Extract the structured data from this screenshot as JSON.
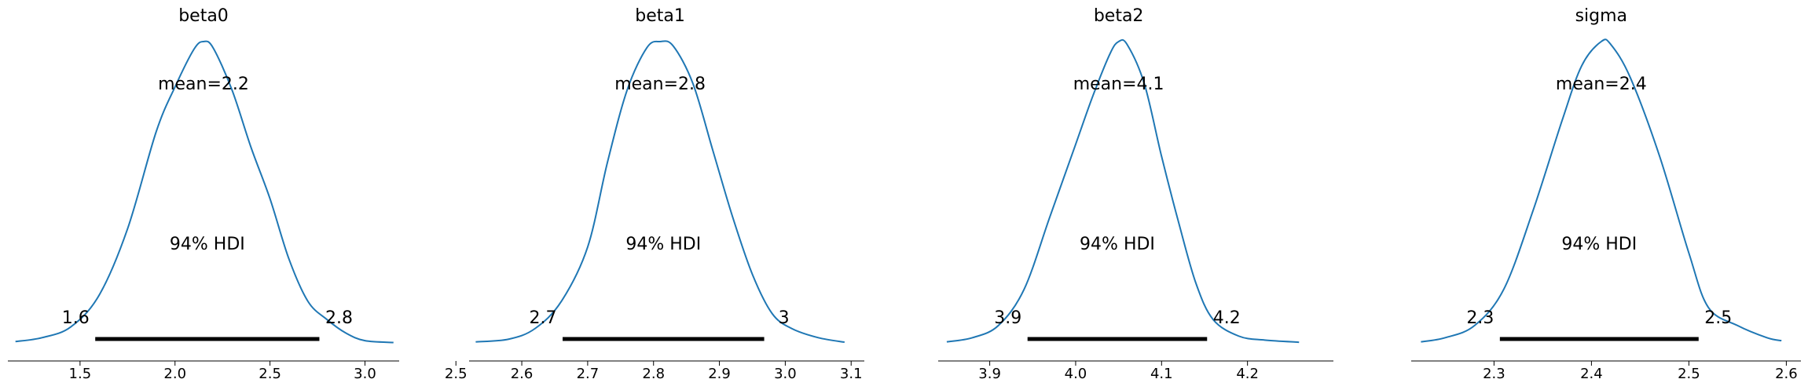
{
  "colors": {
    "kde": "#1f77b4",
    "hdi": "#000000",
    "axis": "#000000"
  },
  "chart_data": [
    {
      "type": "area",
      "title": "beta0",
      "xlim": [
        1.12,
        3.18
      ],
      "xticks": [
        1.5,
        2.0,
        2.5,
        3.0
      ],
      "xtick_labels": [
        "1.5",
        "2.0",
        "2.5",
        "3.0"
      ],
      "mean_label": "mean=2.2",
      "hdi_label": "94% HDI",
      "hdi": [
        1.58,
        2.76
      ],
      "hdi_labels": [
        "1.6",
        "2.8"
      ],
      "density": {
        "x": [
          1.16,
          1.3,
          1.45,
          1.6,
          1.75,
          1.9,
          2.0,
          2.1,
          2.15,
          2.2,
          2.3,
          2.4,
          2.5,
          2.6,
          2.7,
          2.8,
          2.9,
          3.0,
          3.15
        ],
        "y": [
          0.007,
          0.02,
          0.055,
          0.16,
          0.38,
          0.7,
          0.85,
          0.975,
          1.0,
          0.98,
          0.84,
          0.65,
          0.48,
          0.28,
          0.14,
          0.08,
          0.035,
          0.01,
          0.004
        ]
      }
    },
    {
      "type": "area",
      "title": "beta1",
      "xlim": [
        2.52,
        3.12
      ],
      "xticks": [
        2.5,
        2.6,
        2.7,
        2.8,
        2.9,
        3.0,
        3.1
      ],
      "xtick_labels": [
        "2.5",
        "2.6",
        "2.7",
        "2.8",
        "2.9",
        "3.0",
        "3.1"
      ],
      "mean_label": "mean=2.8",
      "hdi_label": "94% HDI",
      "hdi": [
        2.662,
        2.968
      ],
      "hdi_labels": [
        "2.7",
        "3"
      ],
      "density": {
        "x": [
          2.53,
          2.58,
          2.62,
          2.66,
          2.7,
          2.73,
          2.76,
          2.79,
          2.81,
          2.83,
          2.86,
          2.89,
          2.92,
          2.95,
          2.98,
          3.01,
          3.05,
          3.09
        ],
        "y": [
          0.006,
          0.015,
          0.05,
          0.14,
          0.32,
          0.6,
          0.84,
          0.98,
          1.0,
          0.985,
          0.86,
          0.64,
          0.42,
          0.23,
          0.1,
          0.05,
          0.02,
          0.005
        ]
      }
    },
    {
      "type": "area",
      "title": "beta2",
      "xlim": [
        3.84,
        4.3
      ],
      "xticks": [
        3.9,
        4.0,
        4.1,
        4.2
      ],
      "xtick_labels": [
        "3.9",
        "4.0",
        "4.1",
        "4.2"
      ],
      "mean_label": "mean=4.1",
      "hdi_label": "94% HDI",
      "hdi": [
        3.944,
        4.153
      ],
      "hdi_labels": [
        "3.9",
        "4.2"
      ],
      "density": {
        "x": [
          3.85,
          3.88,
          3.91,
          3.94,
          3.97,
          4.0,
          4.02,
          4.04,
          4.05,
          4.06,
          4.08,
          4.1,
          4.12,
          4.14,
          4.16,
          4.19,
          4.22,
          4.26
        ],
        "y": [
          0.006,
          0.02,
          0.06,
          0.18,
          0.42,
          0.66,
          0.82,
          0.96,
          1.0,
          0.99,
          0.86,
          0.62,
          0.4,
          0.2,
          0.08,
          0.025,
          0.012,
          0.005
        ]
      }
    },
    {
      "type": "area",
      "title": "sigma",
      "xlim": [
        2.215,
        2.615
      ],
      "xticks": [
        2.3,
        2.4,
        2.5,
        2.6
      ],
      "xtick_labels": [
        "2.3",
        "2.4",
        "2.5",
        "2.6"
      ],
      "mean_label": "mean=2.4",
      "hdi_label": "94% HDI",
      "hdi": [
        2.306,
        2.51
      ],
      "hdi_labels": [
        "2.3",
        "2.5"
      ],
      "density": {
        "x": [
          2.225,
          2.25,
          2.28,
          2.31,
          2.34,
          2.37,
          2.39,
          2.41,
          2.42,
          2.44,
          2.47,
          2.5,
          2.52,
          2.55,
          2.58,
          2.595
        ],
        "y": [
          0.006,
          0.02,
          0.06,
          0.18,
          0.44,
          0.74,
          0.92,
          1.0,
          0.99,
          0.88,
          0.62,
          0.3,
          0.12,
          0.06,
          0.02,
          0.01
        ]
      }
    }
  ]
}
